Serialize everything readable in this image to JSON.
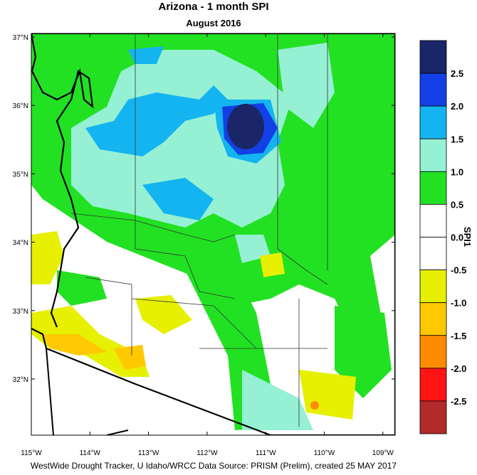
{
  "header": {
    "title": "Arizona - 1 month SPI",
    "subtitle": "August 2016"
  },
  "map": {
    "lat_labels": [
      "37°N",
      "36°N",
      "35°N",
      "34°N",
      "33°N",
      "32°N"
    ],
    "lon_labels": [
      "115°W",
      "114°W",
      "113°W",
      "112°W",
      "111°W",
      "110°W",
      "109°W"
    ]
  },
  "colorbar": {
    "title": "SPI1",
    "labels": [
      "2.5",
      "2.0",
      "1.5",
      "1.0",
      "0.5",
      "0.0",
      "-0.5",
      "-1.0",
      "-1.5",
      "-2.0",
      "-2.5"
    ],
    "colors": [
      "#1b2668",
      "#1240e6",
      "#14b4f0",
      "#96f0d4",
      "#22e122",
      "#ffffff",
      "#ffffff",
      "#e6f000",
      "#ffc800",
      "#ff8c00",
      "#ff1414",
      "#b22a2a"
    ]
  },
  "footer": {
    "credit": "WestWide Drought Tracker, U Idaho/WRCC Data Source: PRISM (Prelim), created 25 MAY 2017"
  }
}
